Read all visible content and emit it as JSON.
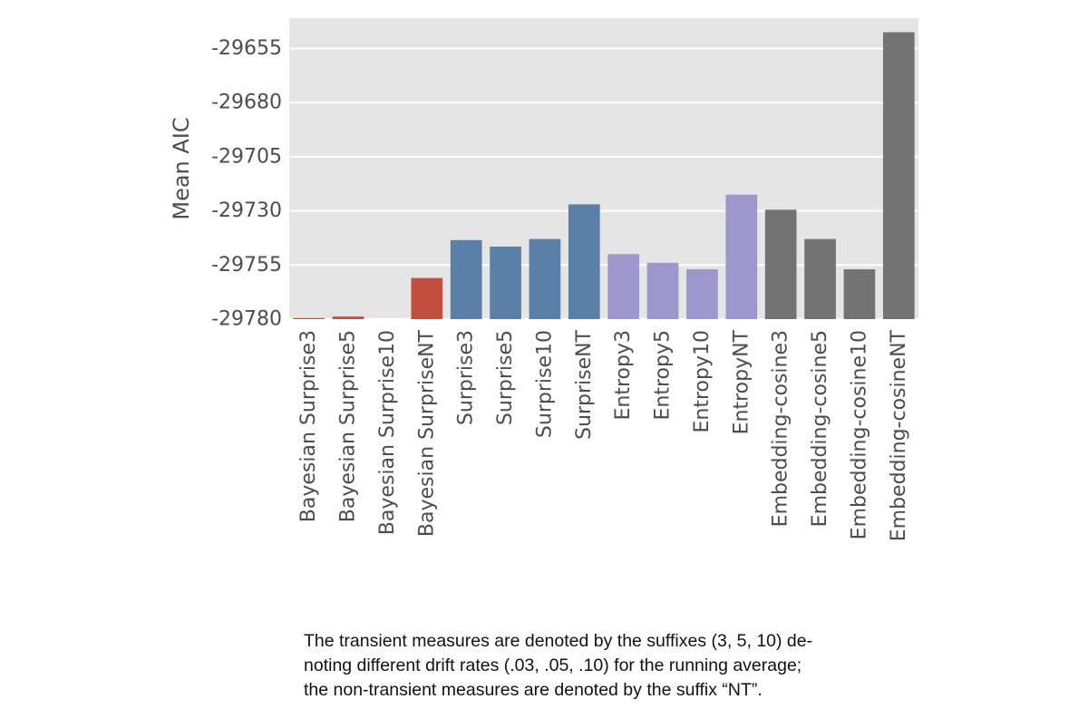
{
  "chart_data": {
    "type": "bar",
    "ylabel": "Mean AIC",
    "xlabel": "",
    "ylim": [
      -29780,
      -29641
    ],
    "yticks": [
      -29780,
      -29755,
      -29730,
      -29705,
      -29680,
      -29655
    ],
    "grid": true,
    "categories": [
      "Bayesian Surprise3",
      "Bayesian Surprise5",
      "Bayesian Surprise10",
      "Bayesian SurpriseNT",
      "Surprise3",
      "Surprise5",
      "Surprise10",
      "SurpriseNT",
      "Entropy3",
      "Entropy5",
      "Entropy10",
      "EntropyNT",
      "Embedding-cosine3",
      "Embedding-cosine5",
      "Embedding-cosine10",
      "Embedding-cosineNT"
    ],
    "values": [
      -29779.5,
      -29778.8,
      -29780,
      -29761,
      -29743.5,
      -29746.5,
      -29743,
      -29727,
      -29750,
      -29754,
      -29757,
      -29722.5,
      -29729.5,
      -29743,
      -29757,
      -29647.5
    ],
    "colors": [
      "#c44e3f",
      "#c44e3f",
      "#c44e3f",
      "#c44e3f",
      "#5b80a8",
      "#5b80a8",
      "#5b80a8",
      "#5b80a8",
      "#9d97cc",
      "#9d97cc",
      "#9d97cc",
      "#9d97cc",
      "#737373",
      "#737373",
      "#737373",
      "#737373"
    ],
    "plot_background": "#e5e5e5"
  },
  "caption": {
    "lines": [
      "The transient measures are denoted by the suffixes (3, 5, 10) de-",
      "noting different drift rates (.03, .05, .10) for the running average;",
      "the non-transient measures are denoted by the suffix “NT”."
    ]
  }
}
